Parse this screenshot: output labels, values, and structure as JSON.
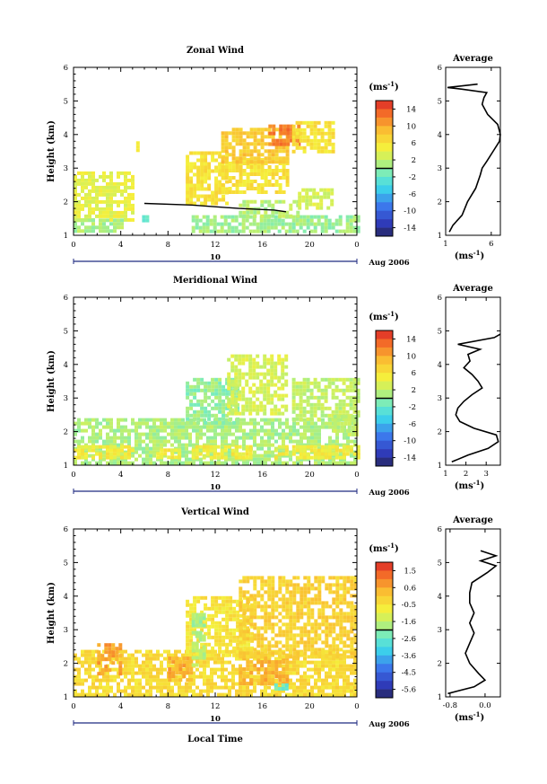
{
  "chart_data": [
    {
      "type": "heatmap",
      "title": "Zonal Wind",
      "ylabel": "Height (km)",
      "yticks": [
        "1",
        "2",
        "3",
        "4",
        "5",
        "6"
      ],
      "ylim": [
        1,
        6
      ],
      "xticks": [
        "0",
        "4",
        "8",
        "12",
        "16",
        "20",
        "0"
      ],
      "xlim": [
        0,
        24
      ],
      "day_label": "10",
      "date_label": "Aug 2006",
      "colorbar": {
        "unit_base": "(ms",
        "unit_exp": "-1",
        "unit_close": ")",
        "ticks": [
          "14",
          "10",
          "6",
          "2",
          "-2",
          "-6",
          "-10",
          "-14"
        ],
        "range": [
          -16,
          16
        ]
      },
      "features": [
        {
          "value": 4,
          "blocks": [
            [
              0,
              5,
              1.45,
              2.9
            ]
          ]
        },
        {
          "value": 1,
          "blocks": [
            [
              0,
              4,
              1.1,
              1.5
            ]
          ]
        },
        {
          "value": 5,
          "blocks": [
            [
              5,
              5.5,
              3.5,
              3.8
            ]
          ]
        },
        {
          "value": 6,
          "blocks": [
            [
              9.5,
              13,
              1.9,
              3.5
            ]
          ]
        },
        {
          "value": 6,
          "blocks": [
            [
              12.5,
              18,
              2.3,
              3.3
            ]
          ]
        },
        {
          "value": 8,
          "blocks": [
            [
              12.5,
              18,
              3.2,
              4.2
            ]
          ]
        },
        {
          "value": 12,
          "blocks": [
            [
              16.5,
              19,
              3.7,
              4.3
            ]
          ]
        },
        {
          "value": 6,
          "blocks": [
            [
              18.5,
              22,
              3.5,
              4.4
            ]
          ]
        },
        {
          "value": 0.5,
          "blocks": [
            [
              10,
              24,
              1.1,
              1.6
            ]
          ]
        },
        {
          "value": 1.5,
          "blocks": [
            [
              14,
              19,
              1.55,
              2.05
            ]
          ]
        },
        {
          "value": 3,
          "blocks": [
            [
              19,
              22,
              1.8,
              2.4
            ]
          ]
        },
        {
          "value": -1,
          "blocks": [
            [
              5.8,
              6.3,
              1.4,
              1.6
            ]
          ]
        }
      ],
      "zero_contour": [
        [
          6,
          1.95
        ],
        [
          10,
          1.9
        ],
        [
          14,
          1.8
        ],
        [
          17,
          1.75
        ],
        [
          18,
          1.7
        ]
      ],
      "profile": {
        "title": "Average",
        "xticks": [
          "1",
          "6"
        ],
        "xlim": [
          1,
          7
        ],
        "xlabel": "(ms",
        "xlabel_exp": "-1",
        "xlabel_close": ")",
        "height": [
          1.1,
          1.3,
          1.6,
          2.0,
          2.4,
          2.8,
          3.0,
          3.2,
          3.5,
          3.8,
          4.0,
          4.3,
          4.6,
          4.9,
          5.1,
          5.25,
          5.35,
          5.4,
          5.5
        ],
        "values": [
          1.4,
          1.8,
          2.8,
          3.4,
          4.3,
          4.8,
          5.0,
          5.5,
          6.2,
          6.9,
          7.0,
          6.7,
          5.6,
          5.0,
          5.2,
          5.5,
          2.8,
          1.2,
          4.5
        ]
      }
    },
    {
      "type": "heatmap",
      "title": "Meridional Wind",
      "ylabel": "Height (km)",
      "yticks": [
        "1",
        "2",
        "3",
        "4",
        "5",
        "6"
      ],
      "ylim": [
        1,
        6
      ],
      "xticks": [
        "0",
        "4",
        "8",
        "12",
        "16",
        "20",
        "0"
      ],
      "xlim": [
        0,
        24
      ],
      "day_label": "10",
      "date_label": "Aug 2006",
      "colorbar": {
        "unit_base": "(ms",
        "unit_exp": "-1",
        "unit_close": ")",
        "ticks": [
          "14",
          "10",
          "6",
          "2",
          "-2",
          "-6",
          "-10",
          "-14"
        ],
        "range": [
          -16,
          16
        ]
      },
      "features": [
        {
          "value": 1,
          "blocks": [
            [
              0,
              24,
              1.1,
              2.4
            ]
          ]
        },
        {
          "value": 5,
          "blocks": [
            [
              0,
              5,
              1.2,
              1.6
            ]
          ]
        },
        {
          "value": 5,
          "blocks": [
            [
              7,
              9,
              1.2,
              1.5
            ]
          ]
        },
        {
          "value": 5,
          "blocks": [
            [
              10,
              15,
              1.2,
              1.6
            ]
          ]
        },
        {
          "value": 5,
          "blocks": [
            [
              17,
              24,
              1.2,
              1.6
            ]
          ]
        },
        {
          "value": 0,
          "blocks": [
            [
              9.5,
              14,
              2.3,
              3.6
            ]
          ]
        },
        {
          "value": 3,
          "blocks": [
            [
              13,
              18,
              2.5,
              4.3
            ]
          ]
        },
        {
          "value": 2,
          "blocks": [
            [
              18.5,
              24,
              2.4,
              3.6
            ]
          ]
        },
        {
          "value": 2,
          "blocks": [
            [
              22,
              24,
              1.9,
              2.5
            ]
          ]
        }
      ],
      "zero_contour": [],
      "profile": {
        "title": "Average",
        "xticks": [
          "1",
          "2",
          "3"
        ],
        "xlim": [
          1,
          3.7
        ],
        "xlabel": "(ms",
        "xlabel_exp": "-1",
        "xlabel_close": ")",
        "height": [
          1.1,
          1.3,
          1.5,
          1.7,
          1.9,
          2.1,
          2.3,
          2.5,
          2.7,
          2.9,
          3.1,
          3.3,
          3.5,
          3.7,
          3.9,
          4.1,
          4.3,
          4.45,
          4.6,
          4.8,
          4.9
        ],
        "values": [
          1.3,
          2.1,
          3.1,
          3.6,
          3.5,
          2.4,
          1.7,
          1.5,
          1.6,
          1.9,
          2.3,
          2.8,
          2.6,
          2.3,
          1.9,
          2.2,
          2.1,
          2.7,
          1.6,
          3.4,
          3.7
        ]
      }
    },
    {
      "type": "heatmap",
      "title": "Vertical Wind",
      "ylabel": "Height (km)",
      "yticks": [
        "1",
        "2",
        "3",
        "4",
        "5",
        "6"
      ],
      "ylim": [
        1,
        6
      ],
      "xticks": [
        "0",
        "4",
        "8",
        "12",
        "16",
        "20",
        "0"
      ],
      "xlim": [
        0,
        24
      ],
      "day_label": "10",
      "date_label": "Aug 2006",
      "xlabel": "Local Time",
      "colorbar": {
        "unit_base": "(ms",
        "unit_exp": "-1",
        "unit_close": ")",
        "ticks": [
          "1.5",
          "0.6",
          "-0.5",
          "-1.6",
          "-2.6",
          "-3.6",
          "-4.5",
          "-5.6"
        ],
        "range": [
          -6.1,
          2.0
        ]
      },
      "features": [
        {
          "value": -0.4,
          "blocks": [
            [
              0,
              24,
              1.1,
              2.4
            ]
          ]
        },
        {
          "value": 0.6,
          "blocks": [
            [
              2,
              4,
              1.7,
              2.6
            ]
          ]
        },
        {
          "value": 0.4,
          "blocks": [
            [
              8,
              10,
              1.5,
              2.2
            ]
          ]
        },
        {
          "value": 0.3,
          "blocks": [
            [
              14,
              18,
              1.4,
              2.2
            ]
          ]
        },
        {
          "value": -0.6,
          "blocks": [
            [
              9.5,
              15,
              2.2,
              4.0
            ]
          ]
        },
        {
          "value": -0.2,
          "blocks": [
            [
              14,
              24,
              2.2,
              4.6
            ]
          ]
        },
        {
          "value": -1.8,
          "blocks": [
            [
              10,
              11,
              2.0,
              3.5
            ]
          ]
        },
        {
          "value": -2.5,
          "blocks": [
            [
              17,
              18,
              1.2,
              1.4
            ]
          ]
        }
      ],
      "zero_contour": [],
      "profile": {
        "title": "Average",
        "xticks": [
          "-0.8",
          "0.0"
        ],
        "xlim": [
          -0.9,
          0.35
        ],
        "xlabel": "(ms",
        "xlabel_exp": "-1",
        "xlabel_close": ")",
        "height": [
          1.1,
          1.3,
          1.5,
          1.7,
          2.0,
          2.3,
          2.6,
          2.9,
          3.2,
          3.5,
          3.8,
          4.1,
          4.4,
          4.7,
          4.9,
          5.05,
          5.2,
          5.35
        ],
        "values": [
          -0.85,
          -0.25,
          0.0,
          -0.15,
          -0.35,
          -0.45,
          -0.35,
          -0.25,
          -0.35,
          -0.25,
          -0.35,
          -0.35,
          -0.3,
          0.05,
          0.25,
          -0.1,
          0.25,
          -0.1
        ]
      }
    }
  ]
}
